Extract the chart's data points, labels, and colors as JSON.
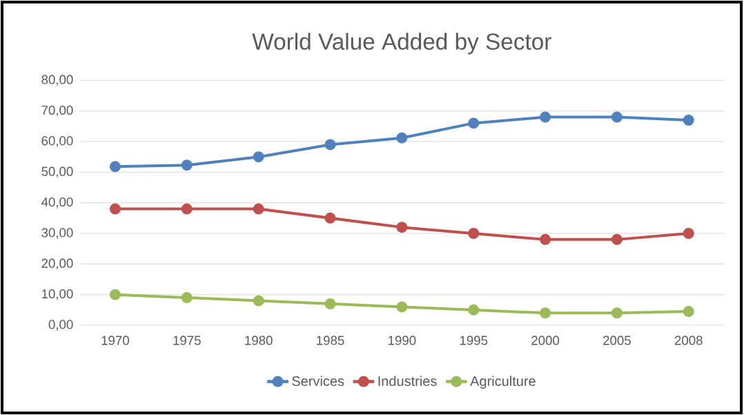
{
  "chart_data": {
    "type": "line",
    "title": "World Value Added by Sector",
    "categories": [
      "1970",
      "1975",
      "1980",
      "1985",
      "1990",
      "1995",
      "2000",
      "2005",
      "2008"
    ],
    "series": [
      {
        "name": "Services",
        "color": "#4f81bd",
        "values": [
          51.8,
          52.3,
          55,
          59,
          61.2,
          66,
          68,
          68,
          67
        ]
      },
      {
        "name": "Industries",
        "color": "#c0504d",
        "values": [
          38,
          38,
          38,
          35,
          32,
          30,
          28,
          28,
          30
        ]
      },
      {
        "name": "Agriculture",
        "color": "#9bbb59",
        "values": [
          10,
          9,
          8,
          7,
          6,
          5,
          4,
          4,
          4.5
        ]
      }
    ],
    "ylim": [
      0,
      80
    ],
    "yticks": [
      {
        "value": 0,
        "label": "0,00"
      },
      {
        "value": 10,
        "label": "10,00"
      },
      {
        "value": 20,
        "label": "20,00"
      },
      {
        "value": 30,
        "label": "30,00"
      },
      {
        "value": 40,
        "label": "40,00"
      },
      {
        "value": 50,
        "label": "50,00"
      },
      {
        "value": 60,
        "label": "60,00"
      },
      {
        "value": 70,
        "label": "70,00"
      },
      {
        "value": 80,
        "label": "80,00"
      }
    ],
    "grid": "y",
    "legend": "bottom",
    "marker": "circle",
    "line_style": "solid"
  }
}
